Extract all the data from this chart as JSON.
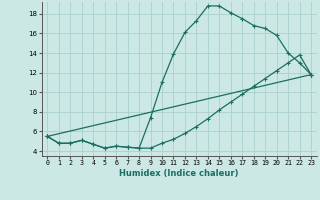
{
  "xlabel": "Humidex (Indice chaleur)",
  "bg_color": "#cce8e4",
  "grid_color": "#aacfcb",
  "line_color": "#1a6e62",
  "xlim": [
    -0.5,
    23.5
  ],
  "ylim": [
    3.5,
    19.2
  ],
  "xticks": [
    0,
    1,
    2,
    3,
    4,
    5,
    6,
    7,
    8,
    9,
    10,
    11,
    12,
    13,
    14,
    15,
    16,
    17,
    18,
    19,
    20,
    21,
    22,
    23
  ],
  "yticks": [
    4,
    6,
    8,
    10,
    12,
    14,
    16,
    18
  ],
  "line1_x": [
    0,
    1,
    2,
    3,
    4,
    5,
    6,
    7,
    8,
    9,
    10,
    11,
    12,
    13,
    14,
    15,
    16,
    17,
    18,
    19,
    20,
    21,
    22,
    23
  ],
  "line1_y": [
    5.5,
    4.8,
    4.8,
    5.1,
    4.7,
    4.3,
    4.5,
    4.4,
    4.3,
    7.4,
    11.0,
    13.9,
    16.1,
    17.3,
    18.8,
    18.8,
    18.1,
    17.5,
    16.8,
    16.5,
    15.8,
    14.0,
    13.0,
    11.8
  ],
  "line2_x": [
    0,
    1,
    2,
    3,
    4,
    5,
    6,
    7,
    8,
    9,
    10,
    11,
    12,
    13,
    14,
    15,
    16,
    17,
    18,
    19,
    20,
    21,
    22,
    23
  ],
  "line2_y": [
    5.5,
    4.8,
    4.8,
    5.1,
    4.7,
    4.3,
    4.5,
    4.4,
    4.3,
    4.3,
    4.8,
    5.2,
    5.8,
    6.5,
    7.3,
    8.2,
    9.0,
    9.8,
    10.6,
    11.4,
    12.2,
    13.0,
    13.8,
    11.8
  ],
  "line3_x": [
    0,
    23
  ],
  "line3_y": [
    5.5,
    11.8
  ]
}
